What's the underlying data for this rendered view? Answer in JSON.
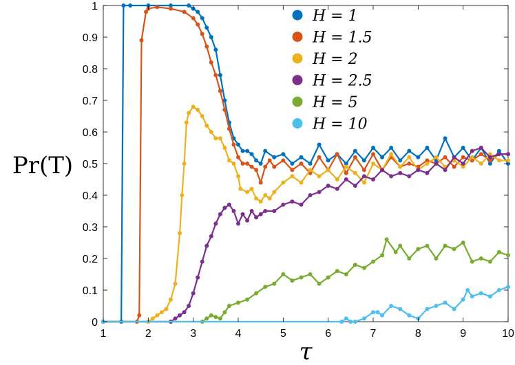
{
  "chart_data": {
    "type": "line",
    "xlabel": "τ",
    "ylabel": "Pr(T)",
    "xlim": [
      1,
      10
    ],
    "ylim": [
      0,
      1
    ],
    "xticks": [
      "1",
      "2",
      "3",
      "4",
      "5",
      "6",
      "7",
      "8",
      "9",
      "10"
    ],
    "yticks": [
      "0",
      "0.1",
      "0.2",
      "0.3",
      "0.4",
      "0.5",
      "0.6",
      "0.7",
      "0.8",
      "0.9",
      "1"
    ],
    "grid": false,
    "legend": "top-right",
    "series": [
      {
        "name": "H = 1",
        "color": "#0072BD",
        "points": [
          [
            1.0,
            0
          ],
          [
            1.4,
            0
          ],
          [
            1.45,
            1.0
          ],
          [
            1.6,
            1.0
          ],
          [
            2.0,
            1.0
          ],
          [
            2.5,
            1.0
          ],
          [
            2.9,
            1.0
          ],
          [
            3.0,
            0.99
          ],
          [
            3.1,
            0.98
          ],
          [
            3.2,
            0.96
          ],
          [
            3.3,
            0.93
          ],
          [
            3.4,
            0.9
          ],
          [
            3.5,
            0.86
          ],
          [
            3.6,
            0.78
          ],
          [
            3.7,
            0.7
          ],
          [
            3.8,
            0.63
          ],
          [
            3.9,
            0.58
          ],
          [
            4.0,
            0.56
          ],
          [
            4.1,
            0.54
          ],
          [
            4.2,
            0.54
          ],
          [
            4.3,
            0.53
          ],
          [
            4.4,
            0.51
          ],
          [
            4.5,
            0.5
          ],
          [
            4.6,
            0.54
          ],
          [
            4.8,
            0.52
          ],
          [
            5.0,
            0.53
          ],
          [
            5.2,
            0.5
          ],
          [
            5.4,
            0.52
          ],
          [
            5.6,
            0.5
          ],
          [
            5.8,
            0.56
          ],
          [
            6.0,
            0.51
          ],
          [
            6.2,
            0.53
          ],
          [
            6.4,
            0.5
          ],
          [
            6.6,
            0.54
          ],
          [
            6.8,
            0.51
          ],
          [
            7.0,
            0.55
          ],
          [
            7.2,
            0.52
          ],
          [
            7.4,
            0.55
          ],
          [
            7.6,
            0.51
          ],
          [
            7.8,
            0.54
          ],
          [
            8.0,
            0.52
          ],
          [
            8.2,
            0.55
          ],
          [
            8.4,
            0.51
          ],
          [
            8.6,
            0.58
          ],
          [
            8.8,
            0.52
          ],
          [
            9.0,
            0.55
          ],
          [
            9.2,
            0.51
          ],
          [
            9.4,
            0.55
          ],
          [
            9.6,
            0.5
          ],
          [
            9.8,
            0.54
          ],
          [
            10.0,
            0.5
          ]
        ]
      },
      {
        "name": "H = 1.5",
        "color": "#D95319",
        "points": [
          [
            1.0,
            0
          ],
          [
            1.75,
            0
          ],
          [
            1.8,
            0.02
          ],
          [
            1.85,
            0.89
          ],
          [
            1.95,
            0.98
          ],
          [
            2.0,
            0.99
          ],
          [
            2.2,
            0.995
          ],
          [
            2.5,
            0.99
          ],
          [
            2.8,
            0.98
          ],
          [
            3.0,
            0.96
          ],
          [
            3.1,
            0.94
          ],
          [
            3.2,
            0.91
          ],
          [
            3.3,
            0.87
          ],
          [
            3.4,
            0.82
          ],
          [
            3.5,
            0.78
          ],
          [
            3.6,
            0.73
          ],
          [
            3.7,
            0.67
          ],
          [
            3.8,
            0.61
          ],
          [
            3.9,
            0.56
          ],
          [
            4.0,
            0.52
          ],
          [
            4.1,
            0.5
          ],
          [
            4.2,
            0.5
          ],
          [
            4.3,
            0.49
          ],
          [
            4.4,
            0.48
          ],
          [
            4.5,
            0.44
          ],
          [
            4.6,
            0.49
          ],
          [
            4.7,
            0.51
          ],
          [
            4.8,
            0.49
          ],
          [
            5.0,
            0.51
          ],
          [
            5.2,
            0.48
          ],
          [
            5.4,
            0.5
          ],
          [
            5.6,
            0.47
          ],
          [
            5.8,
            0.52
          ],
          [
            6.0,
            0.48
          ],
          [
            6.2,
            0.53
          ],
          [
            6.4,
            0.47
          ],
          [
            6.6,
            0.52
          ],
          [
            6.8,
            0.48
          ],
          [
            7.0,
            0.53
          ],
          [
            7.2,
            0.48
          ],
          [
            7.4,
            0.52
          ],
          [
            7.6,
            0.49
          ],
          [
            7.8,
            0.5
          ],
          [
            8.0,
            0.49
          ],
          [
            8.2,
            0.51
          ],
          [
            8.4,
            0.5
          ],
          [
            8.6,
            0.52
          ],
          [
            8.8,
            0.49
          ],
          [
            9.0,
            0.52
          ],
          [
            9.2,
            0.51
          ],
          [
            9.4,
            0.53
          ],
          [
            9.6,
            0.51
          ],
          [
            9.8,
            0.53
          ],
          [
            10.0,
            0.53
          ]
        ]
      },
      {
        "name": "H = 2",
        "color": "#EDB120",
        "points": [
          [
            1.0,
            0
          ],
          [
            2.0,
            0
          ],
          [
            2.1,
            0.01
          ],
          [
            2.2,
            0.02
          ],
          [
            2.3,
            0.03
          ],
          [
            2.4,
            0.04
          ],
          [
            2.5,
            0.07
          ],
          [
            2.6,
            0.12
          ],
          [
            2.7,
            0.28
          ],
          [
            2.75,
            0.4
          ],
          [
            2.8,
            0.5
          ],
          [
            2.85,
            0.63
          ],
          [
            2.9,
            0.66
          ],
          [
            3.0,
            0.68
          ],
          [
            3.1,
            0.67
          ],
          [
            3.2,
            0.65
          ],
          [
            3.3,
            0.62
          ],
          [
            3.4,
            0.6
          ],
          [
            3.5,
            0.58
          ],
          [
            3.6,
            0.58
          ],
          [
            3.7,
            0.55
          ],
          [
            3.8,
            0.51
          ],
          [
            3.9,
            0.5
          ],
          [
            4.0,
            0.46
          ],
          [
            4.05,
            0.42
          ],
          [
            4.2,
            0.41
          ],
          [
            4.3,
            0.42
          ],
          [
            4.4,
            0.39
          ],
          [
            4.5,
            0.38
          ],
          [
            4.6,
            0.4
          ],
          [
            4.7,
            0.39
          ],
          [
            4.8,
            0.41
          ],
          [
            5.0,
            0.44
          ],
          [
            5.2,
            0.46
          ],
          [
            5.4,
            0.44
          ],
          [
            5.6,
            0.48
          ],
          [
            5.8,
            0.46
          ],
          [
            6.0,
            0.48
          ],
          [
            6.2,
            0.45
          ],
          [
            6.4,
            0.49
          ],
          [
            6.6,
            0.47
          ],
          [
            6.8,
            0.44
          ],
          [
            7.0,
            0.5
          ],
          [
            7.2,
            0.48
          ],
          [
            7.4,
            0.53
          ],
          [
            7.6,
            0.49
          ],
          [
            7.8,
            0.52
          ],
          [
            8.0,
            0.48
          ],
          [
            8.2,
            0.5
          ],
          [
            8.4,
            0.52
          ],
          [
            8.6,
            0.49
          ],
          [
            8.8,
            0.51
          ],
          [
            9.0,
            0.49
          ],
          [
            9.2,
            0.52
          ],
          [
            9.4,
            0.5
          ],
          [
            9.6,
            0.53
          ],
          [
            9.8,
            0.51
          ],
          [
            10.0,
            0.51
          ]
        ]
      },
      {
        "name": "H = 2.5",
        "color": "#7E2F8E",
        "points": [
          [
            1.0,
            0
          ],
          [
            2.5,
            0
          ],
          [
            2.6,
            0.01
          ],
          [
            2.7,
            0.02
          ],
          [
            2.8,
            0.03
          ],
          [
            2.9,
            0.05
          ],
          [
            3.0,
            0.09
          ],
          [
            3.1,
            0.14
          ],
          [
            3.2,
            0.19
          ],
          [
            3.3,
            0.24
          ],
          [
            3.4,
            0.27
          ],
          [
            3.5,
            0.31
          ],
          [
            3.6,
            0.34
          ],
          [
            3.7,
            0.36
          ],
          [
            3.8,
            0.37
          ],
          [
            3.9,
            0.35
          ],
          [
            4.0,
            0.31
          ],
          [
            4.1,
            0.34
          ],
          [
            4.2,
            0.32
          ],
          [
            4.3,
            0.35
          ],
          [
            4.4,
            0.33
          ],
          [
            4.5,
            0.34
          ],
          [
            4.6,
            0.35
          ],
          [
            4.8,
            0.35
          ],
          [
            5.0,
            0.37
          ],
          [
            5.2,
            0.38
          ],
          [
            5.4,
            0.37
          ],
          [
            5.6,
            0.4
          ],
          [
            5.8,
            0.41
          ],
          [
            6.0,
            0.43
          ],
          [
            6.2,
            0.42
          ],
          [
            6.4,
            0.45
          ],
          [
            6.6,
            0.43
          ],
          [
            6.8,
            0.46
          ],
          [
            7.0,
            0.45
          ],
          [
            7.2,
            0.48
          ],
          [
            7.4,
            0.46
          ],
          [
            7.6,
            0.47
          ],
          [
            7.8,
            0.46
          ],
          [
            8.0,
            0.48
          ],
          [
            8.2,
            0.47
          ],
          [
            8.4,
            0.5
          ],
          [
            8.6,
            0.48
          ],
          [
            8.8,
            0.52
          ],
          [
            9.0,
            0.5
          ],
          [
            9.2,
            0.54
          ],
          [
            9.4,
            0.55
          ],
          [
            9.6,
            0.52
          ],
          [
            9.8,
            0.53
          ],
          [
            10.0,
            0.53
          ]
        ]
      },
      {
        "name": "H = 5",
        "color": "#77AC30",
        "points": [
          [
            1.0,
            0
          ],
          [
            3.2,
            0
          ],
          [
            3.3,
            0.01
          ],
          [
            3.4,
            0.02
          ],
          [
            3.5,
            0.015
          ],
          [
            3.6,
            0.01
          ],
          [
            3.7,
            0.03
          ],
          [
            3.8,
            0.05
          ],
          [
            4.0,
            0.06
          ],
          [
            4.2,
            0.07
          ],
          [
            4.4,
            0.09
          ],
          [
            4.6,
            0.11
          ],
          [
            4.8,
            0.12
          ],
          [
            5.0,
            0.15
          ],
          [
            5.2,
            0.13
          ],
          [
            5.4,
            0.14
          ],
          [
            5.6,
            0.15
          ],
          [
            5.8,
            0.12
          ],
          [
            6.0,
            0.14
          ],
          [
            6.2,
            0.16
          ],
          [
            6.4,
            0.15
          ],
          [
            6.6,
            0.18
          ],
          [
            6.8,
            0.17
          ],
          [
            7.0,
            0.19
          ],
          [
            7.2,
            0.21
          ],
          [
            7.3,
            0.26
          ],
          [
            7.5,
            0.22
          ],
          [
            7.6,
            0.24
          ],
          [
            7.8,
            0.2
          ],
          [
            8.0,
            0.23
          ],
          [
            8.2,
            0.24
          ],
          [
            8.4,
            0.2
          ],
          [
            8.6,
            0.24
          ],
          [
            8.8,
            0.23
          ],
          [
            9.0,
            0.25
          ],
          [
            9.2,
            0.19
          ],
          [
            9.4,
            0.2
          ],
          [
            9.6,
            0.19
          ],
          [
            9.8,
            0.22
          ],
          [
            10.0,
            0.21
          ]
        ]
      },
      {
        "name": "H = 10",
        "color": "#4DBEEE",
        "points": [
          [
            1.0,
            0
          ],
          [
            6.3,
            0
          ],
          [
            6.4,
            0.01
          ],
          [
            6.5,
            0
          ],
          [
            6.6,
            0
          ],
          [
            6.8,
            0.01
          ],
          [
            7.0,
            0.03
          ],
          [
            7.1,
            0.03
          ],
          [
            7.2,
            0.02
          ],
          [
            7.4,
            0.05
          ],
          [
            7.6,
            0.04
          ],
          [
            7.8,
            0.02
          ],
          [
            8.0,
            0.01
          ],
          [
            8.2,
            0.04
          ],
          [
            8.4,
            0.05
          ],
          [
            8.6,
            0.06
          ],
          [
            8.8,
            0.04
          ],
          [
            9.0,
            0.07
          ],
          [
            9.1,
            0.1
          ],
          [
            9.2,
            0.08
          ],
          [
            9.4,
            0.09
          ],
          [
            9.6,
            0.08
          ],
          [
            9.8,
            0.1
          ],
          [
            10.0,
            0.11
          ]
        ]
      }
    ]
  }
}
